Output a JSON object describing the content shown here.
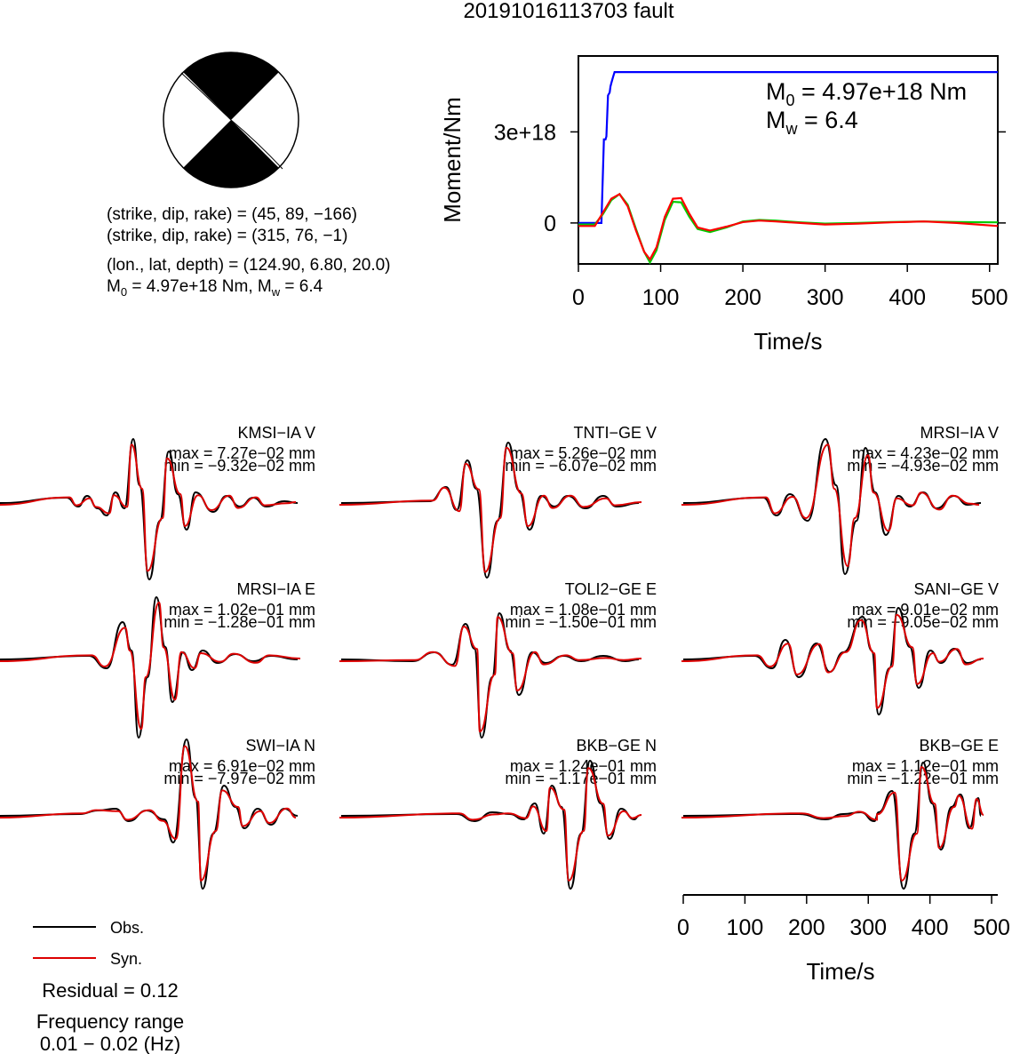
{
  "title": "20191016113703 fault",
  "focal": {
    "lines": [
      "(strike, dip, rake) = (45, 89, −166)",
      "(strike, dip, rake) = (315, 76, −1)",
      "(lon., lat, depth) = (124.90, 6.80, 20.0)"
    ],
    "m0_prefix": "M",
    "m0_sub": "0",
    "m0_text": " = 4.97e+18 Nm, M",
    "mw_sub": "w",
    "mw_text": " = 6.4"
  },
  "moment_plot": {
    "ylabel": "Moment/Nm",
    "xlabel": "Time/s",
    "xticks": [
      "0",
      "100",
      "200",
      "300",
      "400",
      "500"
    ],
    "yticks": [
      "0",
      "3e+18"
    ],
    "ann_m0_prefix": "M",
    "ann_m0_sub": "0",
    "ann_m0_text": " = 4.97e+18 Nm",
    "ann_mw_prefix": "M",
    "ann_mw_sub": "w",
    "ann_mw_text": " = 6.4"
  },
  "chart_data": {
    "type": "line",
    "title": "20191016113703 fault",
    "xlabel": "Time/s",
    "ylabel": "Moment/Nm",
    "xlim": [
      0,
      510
    ],
    "ylim": [
      -1.35e+18,
      5.5e+18
    ],
    "series": [
      {
        "color": "#0000ff",
        "x": [
          0,
          28,
          31,
          33,
          34,
          36,
          38,
          39,
          40,
          42,
          44,
          46,
          510
        ],
        "y": [
          0,
          0,
          2.75e+18,
          2.75e+18,
          2.85e+18,
          4.2e+18,
          4.3e+18,
          4.5e+18,
          4.6e+18,
          4.8e+18,
          4.97e+18,
          4.97e+18,
          4.97e+18
        ]
      },
      {
        "color": "#00cc00",
        "x": [
          0,
          20,
          30,
          40,
          50,
          60,
          70,
          80,
          87,
          95,
          105,
          115,
          125,
          135,
          145,
          160,
          180,
          200,
          220,
          240,
          270,
          300,
          340,
          380,
          420,
          460,
          510
        ],
        "y": [
          -5e+16,
          -5e+16,
          3e+17,
          7.5e+17,
          9.5e+17,
          6e+17,
          -2e+17,
          -9.5e+17,
          -1.3e+18,
          -9e+17,
          1e+17,
          7e+17,
          6.8e+17,
          2e+17,
          -2e+17,
          -3e+17,
          -1.5e+17,
          5e+16,
          1e+17,
          8e+16,
          2e+16,
          -2e+16,
          0.0,
          3e+16,
          5e+16,
          3e+16,
          2e+16
        ]
      },
      {
        "color": "#ff0000",
        "x": [
          0,
          20,
          30,
          40,
          50,
          60,
          70,
          80,
          87,
          95,
          105,
          115,
          125,
          135,
          145,
          160,
          180,
          200,
          220,
          240,
          270,
          300,
          340,
          380,
          420,
          460,
          510
        ],
        "y": [
          -1e+17,
          -1e+17,
          3.5e+17,
          8e+17,
          9.5e+17,
          5.5e+17,
          -2.5e+17,
          -9.5e+17,
          -1.2e+18,
          -8e+17,
          2e+17,
          8e+17,
          8.2e+17,
          3e+17,
          -1.5e+17,
          -2.5e+17,
          -1.2e+17,
          3e+16,
          8e+16,
          5e+16,
          0.0,
          -5e+16,
          -2e+16,
          2e+16,
          5e+16,
          0.0,
          -1e+17
        ]
      }
    ]
  },
  "stations": [
    {
      "name": "KMSI−IA V",
      "max": "max = 7.27e−02 mm",
      "min": "min = −9.32e−02 mm",
      "peaks": [
        [
          20,
          0
        ],
        [
          95,
          6
        ],
        [
          108,
          -4
        ],
        [
          118,
          8
        ],
        [
          130,
          -6
        ],
        [
          140,
          -14
        ],
        [
          150,
          12
        ],
        [
          160,
          -6
        ],
        [
          170,
          72
        ],
        [
          177,
          20
        ],
        [
          188,
          -86
        ],
        [
          200,
          -20
        ],
        [
          210,
          58
        ],
        [
          220,
          10
        ],
        [
          230,
          -30
        ],
        [
          240,
          12
        ],
        [
          260,
          -10
        ],
        [
          275,
          8
        ],
        [
          290,
          -4
        ],
        [
          305,
          6
        ],
        [
          320,
          -4
        ],
        [
          340,
          2
        ],
        [
          355,
          0
        ]
      ]
    },
    {
      "name": "TNTI−GE V",
      "max": "max = 5.26e−02 mm",
      "min": "min = −6.07e−02 mm",
      "peaks": [
        [
          20,
          0
        ],
        [
          120,
          2
        ],
        [
          138,
          18
        ],
        [
          150,
          -8
        ],
        [
          162,
          48
        ],
        [
          172,
          16
        ],
        [
          184,
          -84
        ],
        [
          196,
          -20
        ],
        [
          208,
          68
        ],
        [
          220,
          14
        ],
        [
          232,
          -30
        ],
        [
          245,
          8
        ],
        [
          260,
          -4
        ],
        [
          275,
          8
        ],
        [
          295,
          -6
        ],
        [
          315,
          8
        ],
        [
          330,
          -4
        ],
        [
          355,
          0
        ]
      ]
    },
    {
      "name": "MRSI−IA V",
      "max": "max = 4.23e−02 mm",
      "min": "min = −4.93e−02 mm",
      "peaks": [
        [
          20,
          0
        ],
        [
          110,
          6
        ],
        [
          125,
          -14
        ],
        [
          140,
          10
        ],
        [
          160,
          -20
        ],
        [
          180,
          72
        ],
        [
          192,
          20
        ],
        [
          202,
          -80
        ],
        [
          215,
          -20
        ],
        [
          225,
          62
        ],
        [
          236,
          12
        ],
        [
          248,
          -36
        ],
        [
          262,
          8
        ],
        [
          275,
          -4
        ],
        [
          290,
          12
        ],
        [
          305,
          -6
        ],
        [
          325,
          8
        ],
        [
          340,
          -2
        ],
        [
          355,
          0
        ]
      ]
    },
    {
      "name": "MRSI−IA E",
      "max": "max = 1.02e−01 mm",
      "min": "min = −1.28e−01 mm",
      "peaks": [
        [
          20,
          0
        ],
        [
          120,
          4
        ],
        [
          140,
          -10
        ],
        [
          158,
          42
        ],
        [
          168,
          10
        ],
        [
          176,
          -88
        ],
        [
          186,
          -20
        ],
        [
          196,
          70
        ],
        [
          206,
          14
        ],
        [
          214,
          -48
        ],
        [
          226,
          8
        ],
        [
          236,
          -12
        ],
        [
          248,
          10
        ],
        [
          265,
          -4
        ],
        [
          285,
          6
        ],
        [
          305,
          -2
        ],
        [
          325,
          4
        ],
        [
          355,
          0
        ]
      ]
    },
    {
      "name": "TOLI2−GE E",
      "max": "max = 1.08e−01 mm",
      "min": "min = −1.50e−01 mm",
      "peaks": [
        [
          20,
          0
        ],
        [
          100,
          -2
        ],
        [
          125,
          8
        ],
        [
          145,
          -6
        ],
        [
          160,
          40
        ],
        [
          170,
          12
        ],
        [
          178,
          -88
        ],
        [
          190,
          -20
        ],
        [
          198,
          52
        ],
        [
          210,
          10
        ],
        [
          220,
          -40
        ],
        [
          235,
          8
        ],
        [
          250,
          -4
        ],
        [
          270,
          4
        ],
        [
          290,
          -2
        ],
        [
          315,
          4
        ],
        [
          340,
          -2
        ],
        [
          355,
          0
        ]
      ]
    },
    {
      "name": "SANI−GE V",
      "max": "max = 9.01e−02 mm",
      "min": "min = −9.05e−02 mm",
      "peaks": [
        [
          20,
          0
        ],
        [
          100,
          4
        ],
        [
          120,
          -10
        ],
        [
          135,
          22
        ],
        [
          150,
          -20
        ],
        [
          170,
          18
        ],
        [
          185,
          -14
        ],
        [
          200,
          8
        ],
        [
          222,
          48
        ],
        [
          232,
          10
        ],
        [
          240,
          -62
        ],
        [
          252,
          -10
        ],
        [
          262,
          58
        ],
        [
          275,
          14
        ],
        [
          285,
          -32
        ],
        [
          298,
          10
        ],
        [
          310,
          -4
        ],
        [
          325,
          12
        ],
        [
          340,
          -4
        ],
        [
          355,
          0
        ]
      ]
    },
    {
      "name": "SWI−IA N",
      "max": "max = 6.91e−02 mm",
      "min": "min = −7.97e−02 mm",
      "peaks": [
        [
          20,
          0
        ],
        [
          110,
          2
        ],
        [
          130,
          6
        ],
        [
          150,
          8
        ],
        [
          165,
          -6
        ],
        [
          185,
          6
        ],
        [
          205,
          -4
        ],
        [
          215,
          -30
        ],
        [
          230,
          86
        ],
        [
          240,
          20
        ],
        [
          248,
          -82
        ],
        [
          260,
          -20
        ],
        [
          272,
          34
        ],
        [
          285,
          10
        ],
        [
          295,
          -14
        ],
        [
          310,
          8
        ],
        [
          325,
          -10
        ],
        [
          340,
          8
        ],
        [
          355,
          0
        ]
      ]
    },
    {
      "name": "BKB−GE N",
      "max": "max = 1.24e−01 mm",
      "min": "min = −1.17e−01 mm",
      "peaks": [
        [
          20,
          0
        ],
        [
          150,
          2
        ],
        [
          170,
          -6
        ],
        [
          190,
          4
        ],
        [
          210,
          2
        ],
        [
          225,
          -4
        ],
        [
          238,
          14
        ],
        [
          248,
          -20
        ],
        [
          257,
          34
        ],
        [
          268,
          10
        ],
        [
          278,
          -82
        ],
        [
          290,
          -20
        ],
        [
          300,
          62
        ],
        [
          312,
          14
        ],
        [
          322,
          -26
        ],
        [
          335,
          8
        ],
        [
          350,
          -4
        ],
        [
          355,
          0
        ]
      ]
    },
    {
      "name": "BKB−GE E",
      "max": "max = 1.12e−01 mm",
      "min": "min = −1.22e−01 mm",
      "peaks": [
        [
          20,
          0
        ],
        [
          150,
          2
        ],
        [
          180,
          -4
        ],
        [
          200,
          2
        ],
        [
          220,
          4
        ],
        [
          235,
          -6
        ],
        [
          240,
          4
        ],
        [
          255,
          28
        ],
        [
          268,
          -82
        ],
        [
          280,
          -20
        ],
        [
          290,
          60
        ],
        [
          300,
          14
        ],
        [
          310,
          -38
        ],
        [
          322,
          10
        ],
        [
          332,
          24
        ],
        [
          342,
          -14
        ],
        [
          352,
          20
        ],
        [
          355,
          0
        ]
      ]
    }
  ],
  "waveform_axis": {
    "xticks": [
      "0",
      "100",
      "200",
      "300",
      "400",
      "500"
    ],
    "xlabel": "Time/s"
  },
  "legend": {
    "obs": "Obs.",
    "syn": "Syn.",
    "obs_color": "#000000",
    "syn_color": "#dd0000"
  },
  "residual": "Residual = 0.12",
  "freq_label": "Frequency range",
  "freq_range": "0.01 − 0.02 (Hz)"
}
